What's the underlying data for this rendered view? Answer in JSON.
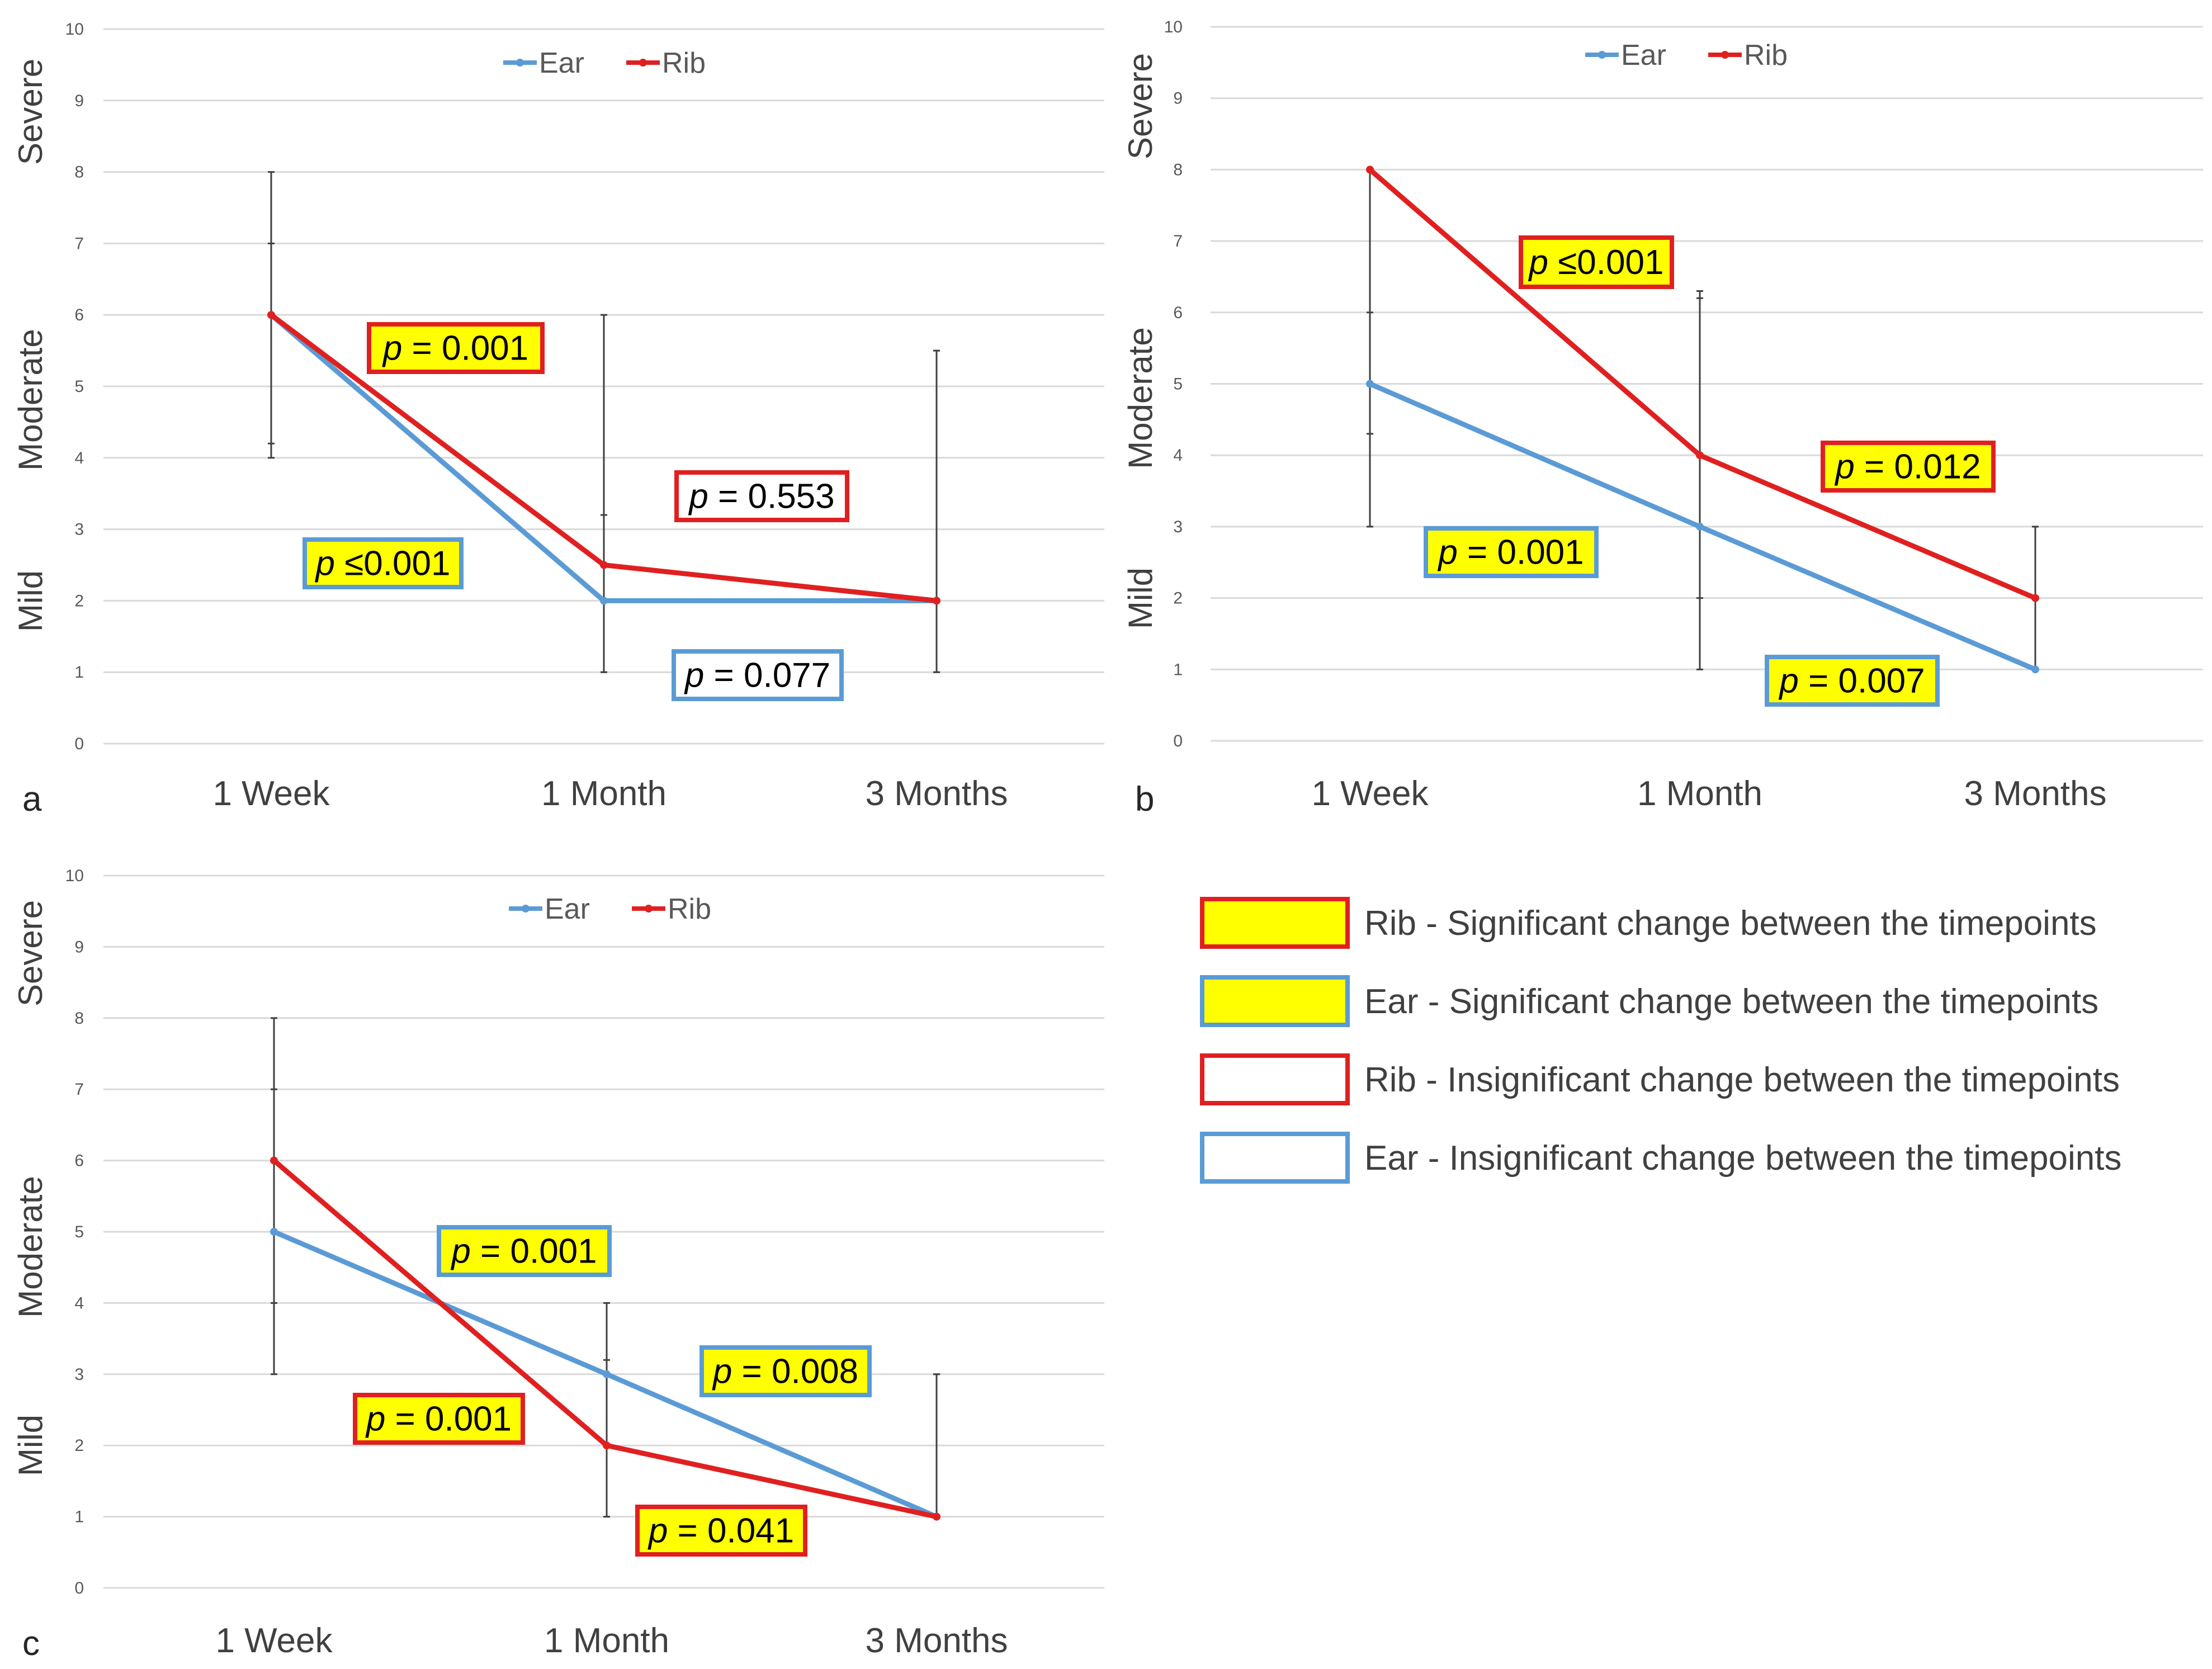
{
  "colors": {
    "ear": "#5b9bd5",
    "rib": "#e02020",
    "significant_fill": "#ffff00",
    "insignificant_fill": "#ffffff",
    "grid": "#d9d9d9",
    "error_bar": "#404040"
  },
  "severity_labels": [
    "Severe",
    "Moderate",
    "Mild"
  ],
  "key": [
    {
      "text": "Rib - Significant change between the timepoints",
      "stroke": "rib",
      "fill": "significant_fill"
    },
    {
      "text": "Ear - Significant change between the timepoints",
      "stroke": "ear",
      "fill": "significant_fill"
    },
    {
      "text": "Rib - Insignificant change between the timepoints",
      "stroke": "rib",
      "fill": "insignificant_fill"
    },
    {
      "text": "Ear - Insignificant change between the timepoints",
      "stroke": "ear",
      "fill": "insignificant_fill"
    }
  ],
  "chart_data": [
    {
      "panel": "a",
      "type": "line",
      "categories": [
        "1 Week",
        "1 Month",
        "3 Months"
      ],
      "ylim": [
        0,
        10
      ],
      "yticks": [
        0,
        1,
        2,
        3,
        4,
        5,
        6,
        7,
        8,
        9,
        10
      ],
      "legend": "top-center",
      "grid": true,
      "series": [
        {
          "name": "Ear",
          "values": [
            6,
            2,
            2
          ],
          "error_low": [
            4.2,
            1,
            1
          ],
          "error_high": [
            7,
            3.2,
            5.5
          ]
        },
        {
          "name": "Rib",
          "values": [
            6,
            2.5,
            2
          ],
          "error_low": [
            4,
            1,
            1
          ],
          "error_high": [
            8,
            6,
            5.5
          ]
        }
      ],
      "annotations": [
        {
          "series": "Rib",
          "text": "= 0.001",
          "significant": true
        },
        {
          "series": "Ear",
          "text": "≤0.001",
          "significant": true
        },
        {
          "series": "Rib",
          "text": "= 0.553",
          "significant": false
        },
        {
          "series": "Ear",
          "text": "= 0.077",
          "significant": false
        }
      ]
    },
    {
      "panel": "b",
      "type": "line",
      "categories": [
        "1 Week",
        "1 Month",
        "3 Months"
      ],
      "ylim": [
        0,
        10
      ],
      "yticks": [
        0,
        1,
        2,
        3,
        4,
        5,
        6,
        7,
        8,
        9,
        10
      ],
      "legend": "top-center",
      "grid": true,
      "series": [
        {
          "name": "Ear",
          "values": [
            5,
            3,
            1
          ],
          "error_low": [
            3,
            1,
            1
          ],
          "error_high": [
            6,
            6.2,
            3
          ]
        },
        {
          "name": "Rib",
          "values": [
            8,
            4,
            2
          ],
          "error_low": [
            4.3,
            2,
            1
          ],
          "error_high": [
            8,
            6.3,
            3
          ]
        }
      ],
      "annotations": [
        {
          "series": "Rib",
          "text": "≤0.001",
          "significant": true
        },
        {
          "series": "Rib",
          "text": "= 0.012",
          "significant": true
        },
        {
          "series": "Ear",
          "text": "= 0.001",
          "significant": true
        },
        {
          "series": "Ear",
          "text": "= 0.007",
          "significant": true
        }
      ]
    },
    {
      "panel": "c",
      "type": "line",
      "categories": [
        "1 Week",
        "1 Month",
        "3 Months"
      ],
      "ylim": [
        0,
        10
      ],
      "yticks": [
        0,
        1,
        2,
        3,
        4,
        5,
        6,
        7,
        8,
        9,
        10
      ],
      "legend": "top-center",
      "grid": true,
      "series": [
        {
          "name": "Ear",
          "values": [
            5,
            3,
            1
          ],
          "error_low": [
            3,
            1,
            1
          ],
          "error_high": [
            7,
            3.2,
            3
          ]
        },
        {
          "name": "Rib",
          "values": [
            6,
            2,
            1
          ],
          "error_low": [
            4,
            1,
            1
          ],
          "error_high": [
            8,
            4,
            3
          ]
        }
      ],
      "annotations": [
        {
          "series": "Ear",
          "text": "= 0.001",
          "significant": true
        },
        {
          "series": "Ear",
          "text": "= 0.008",
          "significant": true
        },
        {
          "series": "Rib",
          "text": "= 0.001",
          "significant": true
        },
        {
          "series": "Rib",
          "text": "= 0.041",
          "significant": true
        }
      ]
    }
  ]
}
